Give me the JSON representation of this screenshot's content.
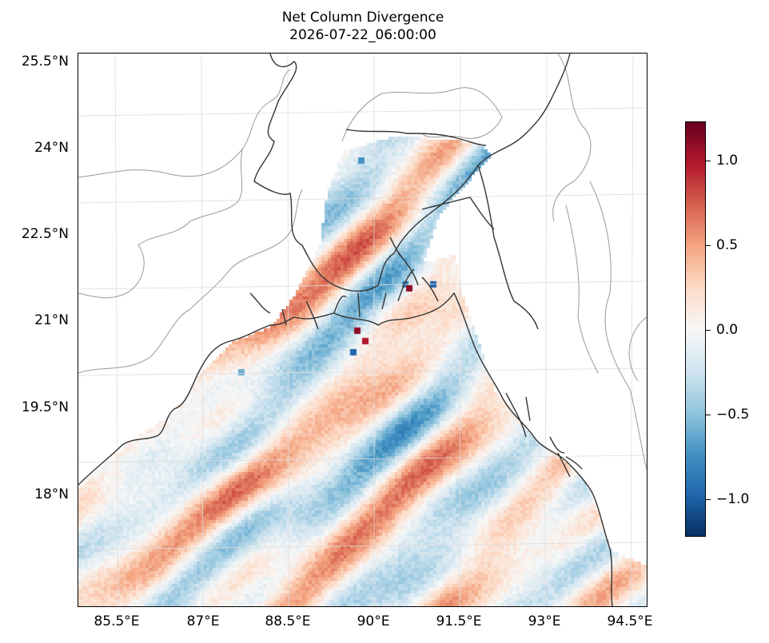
{
  "title": "Net Column Divergence",
  "subtitle": "2026-07-22_06:00:00",
  "lat_labels": [
    "25.5°N",
    "24°N",
    "22.5°N",
    "21°N",
    "19.5°N",
    "18°N"
  ],
  "lon_labels": [
    "85.5°E",
    "87°E",
    "88.5°E",
    "90°E",
    "91.5°E",
    "93°E",
    "94.5°E"
  ],
  "colorbar": {
    "colormap": "RdBu_r",
    "vmin": -1.22,
    "vmax": 1.22,
    "tick_labels": [
      "1.0",
      "0.5",
      "0.0",
      "−0.5",
      "−1.0"
    ],
    "tick_values": [
      1.0,
      0.5,
      0.0,
      -0.5,
      -1.0
    ],
    "colors": [
      "#053061",
      "#2166ac",
      "#4393c3",
      "#92c5de",
      "#d1e5f0",
      "#f7f7f7",
      "#fddbc7",
      "#f4a582",
      "#d6604d",
      "#b2182b",
      "#67001f"
    ]
  },
  "map": {
    "coastline_color": "#333333",
    "border_color": "#999999",
    "gridline_color": "#dddddd"
  }
}
